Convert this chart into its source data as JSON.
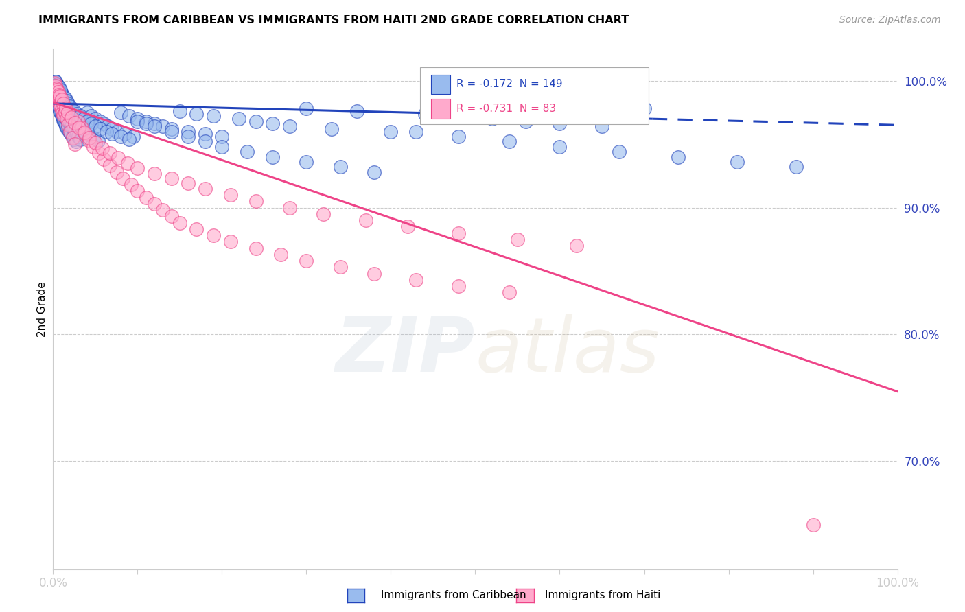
{
  "title": "IMMIGRANTS FROM CARIBBEAN VS IMMIGRANTS FROM HAITI 2ND GRADE CORRELATION CHART",
  "source": "Source: ZipAtlas.com",
  "ylabel": "2nd Grade",
  "ylabel_right_ticks": [
    "100.0%",
    "90.0%",
    "80.0%",
    "70.0%"
  ],
  "ylabel_right_vals": [
    1.0,
    0.9,
    0.8,
    0.7
  ],
  "legend_label1": "Immigrants from Caribbean",
  "legend_label2": "Immigrants from Haiti",
  "R1": -0.172,
  "N1": 149,
  "R2": -0.731,
  "N2": 83,
  "color_blue": "#99BBEE",
  "color_pink": "#FFAACC",
  "color_blue_line": "#2244BB",
  "color_pink_line": "#EE4488",
  "watermark_zip": "ZIP",
  "watermark_atlas": "atlas",
  "background_color": "#FFFFFF",
  "xlim": [
    0.0,
    1.0
  ],
  "ylim": [
    0.615,
    1.025
  ],
  "blue_line_x0": 0.0,
  "blue_line_y0": 0.982,
  "blue_line_x1": 1.0,
  "blue_line_y1": 0.965,
  "blue_line_dash_start": 0.71,
  "pink_line_x0": 0.0,
  "pink_line_y0": 0.983,
  "pink_line_x1": 1.0,
  "pink_line_y1": 0.755,
  "blue_x": [
    0.001,
    0.002,
    0.002,
    0.003,
    0.003,
    0.004,
    0.004,
    0.005,
    0.005,
    0.006,
    0.006,
    0.007,
    0.007,
    0.008,
    0.008,
    0.009,
    0.009,
    0.01,
    0.01,
    0.011,
    0.011,
    0.012,
    0.012,
    0.013,
    0.013,
    0.014,
    0.015,
    0.015,
    0.016,
    0.017,
    0.018,
    0.019,
    0.02,
    0.021,
    0.022,
    0.023,
    0.024,
    0.025,
    0.026,
    0.027,
    0.028,
    0.029,
    0.03,
    0.031,
    0.032,
    0.033,
    0.034,
    0.036,
    0.038,
    0.04,
    0.042,
    0.045,
    0.048,
    0.05,
    0.053,
    0.056,
    0.06,
    0.065,
    0.07,
    0.075,
    0.08,
    0.085,
    0.09,
    0.095,
    0.1,
    0.11,
    0.12,
    0.13,
    0.14,
    0.15,
    0.16,
    0.17,
    0.18,
    0.19,
    0.2,
    0.22,
    0.24,
    0.26,
    0.28,
    0.3,
    0.33,
    0.36,
    0.4,
    0.44,
    0.48,
    0.52,
    0.56,
    0.6,
    0.65,
    0.7,
    0.003,
    0.004,
    0.005,
    0.006,
    0.007,
    0.008,
    0.009,
    0.01,
    0.012,
    0.014,
    0.016,
    0.018,
    0.02,
    0.022,
    0.025,
    0.028,
    0.032,
    0.036,
    0.04,
    0.045,
    0.05,
    0.056,
    0.063,
    0.07,
    0.08,
    0.09,
    0.1,
    0.11,
    0.12,
    0.14,
    0.16,
    0.18,
    0.2,
    0.23,
    0.26,
    0.3,
    0.34,
    0.38,
    0.43,
    0.48,
    0.54,
    0.6,
    0.67,
    0.74,
    0.81,
    0.88,
    0.003,
    0.005,
    0.007,
    0.009
  ],
  "blue_y": [
    0.99,
    0.988,
    0.995,
    0.986,
    0.992,
    0.984,
    0.991,
    0.982,
    0.989,
    0.98,
    0.987,
    0.978,
    0.985,
    0.976,
    0.983,
    0.975,
    0.981,
    0.973,
    0.98,
    0.971,
    0.978,
    0.969,
    0.976,
    0.968,
    0.974,
    0.966,
    0.972,
    0.964,
    0.97,
    0.962,
    0.968,
    0.96,
    0.966,
    0.958,
    0.964,
    0.956,
    0.962,
    0.954,
    0.96,
    0.952,
    0.958,
    0.97,
    0.956,
    0.968,
    0.954,
    0.966,
    0.964,
    0.962,
    0.96,
    0.975,
    0.958,
    0.972,
    0.955,
    0.97,
    0.953,
    0.968,
    0.966,
    0.964,
    0.962,
    0.96,
    0.975,
    0.958,
    0.972,
    0.956,
    0.97,
    0.968,
    0.966,
    0.964,
    0.962,
    0.976,
    0.96,
    0.974,
    0.958,
    0.972,
    0.956,
    0.97,
    0.968,
    0.966,
    0.964,
    0.978,
    0.962,
    0.976,
    0.96,
    0.974,
    0.972,
    0.97,
    0.968,
    0.966,
    0.964,
    0.978,
    0.999,
    0.997,
    0.996,
    0.994,
    0.993,
    0.992,
    0.991,
    0.99,
    0.988,
    0.986,
    0.984,
    0.982,
    0.98,
    0.978,
    0.976,
    0.974,
    0.972,
    0.97,
    0.968,
    0.966,
    0.964,
    0.962,
    0.96,
    0.958,
    0.956,
    0.954,
    0.968,
    0.966,
    0.964,
    0.96,
    0.956,
    0.952,
    0.948,
    0.944,
    0.94,
    0.936,
    0.932,
    0.928,
    0.96,
    0.956,
    0.952,
    0.948,
    0.944,
    0.94,
    0.936,
    0.932,
    0.999,
    0.997,
    0.995,
    0.993
  ],
  "pink_x": [
    0.001,
    0.002,
    0.003,
    0.004,
    0.005,
    0.006,
    0.007,
    0.008,
    0.009,
    0.01,
    0.011,
    0.012,
    0.014,
    0.016,
    0.018,
    0.02,
    0.023,
    0.026,
    0.03,
    0.034,
    0.038,
    0.043,
    0.048,
    0.054,
    0.06,
    0.067,
    0.075,
    0.083,
    0.092,
    0.1,
    0.11,
    0.12,
    0.13,
    0.14,
    0.15,
    0.17,
    0.19,
    0.21,
    0.24,
    0.27,
    0.3,
    0.34,
    0.38,
    0.43,
    0.48,
    0.54,
    0.002,
    0.003,
    0.004,
    0.005,
    0.006,
    0.007,
    0.008,
    0.01,
    0.012,
    0.015,
    0.018,
    0.022,
    0.026,
    0.031,
    0.037,
    0.043,
    0.05,
    0.058,
    0.067,
    0.077,
    0.088,
    0.1,
    0.12,
    0.14,
    0.16,
    0.18,
    0.21,
    0.24,
    0.28,
    0.32,
    0.37,
    0.42,
    0.48,
    0.55,
    0.62,
    0.9
  ],
  "pink_y": [
    0.995,
    0.993,
    0.991,
    0.989,
    0.987,
    0.985,
    0.983,
    0.981,
    0.979,
    0.977,
    0.975,
    0.973,
    0.975,
    0.97,
    0.965,
    0.96,
    0.955,
    0.95,
    0.968,
    0.963,
    0.958,
    0.953,
    0.948,
    0.943,
    0.938,
    0.933,
    0.928,
    0.923,
    0.918,
    0.913,
    0.908,
    0.903,
    0.898,
    0.893,
    0.888,
    0.883,
    0.878,
    0.873,
    0.868,
    0.863,
    0.858,
    0.853,
    0.848,
    0.843,
    0.838,
    0.833,
    0.998,
    0.996,
    0.994,
    0.993,
    0.991,
    0.989,
    0.988,
    0.985,
    0.982,
    0.978,
    0.975,
    0.971,
    0.967,
    0.963,
    0.959,
    0.955,
    0.951,
    0.947,
    0.943,
    0.939,
    0.935,
    0.931,
    0.927,
    0.923,
    0.919,
    0.915,
    0.91,
    0.905,
    0.9,
    0.895,
    0.89,
    0.885,
    0.88,
    0.875,
    0.87,
    0.65
  ]
}
